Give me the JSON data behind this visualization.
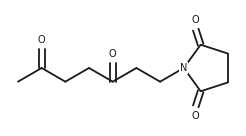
{
  "bg_color": "#ffffff",
  "line_color": "#1a1a1a",
  "line_width": 1.3,
  "text_color": "#1a1a1a",
  "O_label": "O",
  "N_label": "N",
  "font_size": 7.0,
  "fig_width": 2.46,
  "fig_height": 1.36,
  "dpi": 100
}
